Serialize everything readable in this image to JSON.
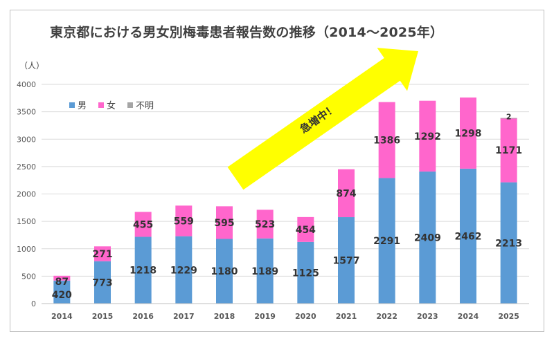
{
  "chart_data": {
    "type": "bar",
    "stacked": true,
    "title": "東京都における男女別梅毒患者報告数の推移（2014～2025年）",
    "unit_label": "（人）",
    "categories": [
      "2014",
      "2015",
      "2016",
      "2017",
      "2018",
      "2019",
      "2020",
      "2021",
      "2022",
      "2023",
      "2024",
      "2025"
    ],
    "series": [
      {
        "name": "男",
        "color": "#5b9bd5",
        "values": [
          420,
          773,
          1218,
          1229,
          1180,
          1189,
          1125,
          1577,
          2291,
          2409,
          2462,
          2213
        ]
      },
      {
        "name": "女",
        "color": "#ff66cc",
        "values": [
          87,
          271,
          455,
          559,
          595,
          523,
          454,
          874,
          1386,
          1292,
          1298,
          1171
        ]
      },
      {
        "name": "不明",
        "color": "#a5a5a5",
        "values": [
          0,
          0,
          0,
          0,
          0,
          0,
          0,
          0,
          0,
          0,
          0,
          2
        ]
      }
    ],
    "ylim": [
      0,
      4000
    ],
    "yticks": [
      0,
      500,
      1000,
      1500,
      2000,
      2500,
      3000,
      3500,
      4000
    ],
    "grid": true,
    "legend": "top-left",
    "annotation": {
      "text": "急増中！",
      "arrow_color": "#ffff00"
    }
  }
}
